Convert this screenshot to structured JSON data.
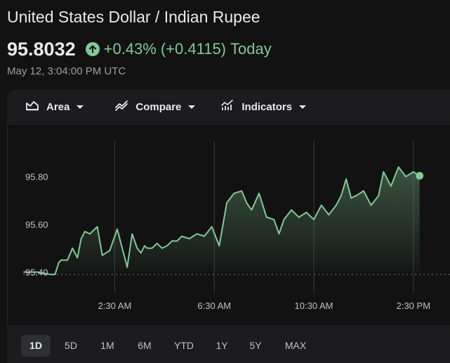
{
  "header": {
    "title": "United States Dollar / Indian Rupee",
    "price": "95.8032",
    "change_pct": "+0.43%",
    "change_abs": "(+0.4115)",
    "change_period": "Today",
    "timestamp": "May 12, 3:04:00 PM UTC"
  },
  "toolbar": {
    "area_label": "Area",
    "compare_label": "Compare",
    "indicators_label": "Indicators"
  },
  "ranges": [
    "1D",
    "5D",
    "1M",
    "6M",
    "YTD",
    "1Y",
    "5Y",
    "MAX"
  ],
  "active_range": "1D",
  "colors": {
    "positive": "#81c995",
    "background": "#121212",
    "panel": "#1c1c1e"
  },
  "chart_data": {
    "type": "area",
    "ylim": [
      95.35,
      95.9
    ],
    "previous_close": 95.39,
    "y_ticks": [
      "95.40",
      "95.60",
      "95.80"
    ],
    "x_ticks": [
      "2:30 AM",
      "6:30 AM",
      "10:30 AM",
      "2:30 PM"
    ],
    "x_tick_hours": [
      2.5,
      6.5,
      10.5,
      14.5
    ],
    "x_range_hours": [
      -1.8,
      16.0
    ],
    "series": [
      {
        "x": [
          -1.17,
          -0.6,
          -0.1,
          0.1,
          0.25,
          0.35,
          0.6,
          0.8,
          1.0,
          1.15,
          1.3,
          1.5,
          1.8,
          2.0,
          2.3,
          2.6,
          2.8,
          3.0,
          3.2,
          3.4,
          3.55,
          3.7,
          3.8,
          4.0,
          4.2,
          4.4,
          4.6,
          4.8,
          5.0,
          5.2,
          5.5,
          5.8,
          6.1,
          6.4,
          6.7,
          7.0,
          7.3,
          7.6,
          7.8,
          8.0,
          8.3,
          8.6,
          8.9,
          9.1,
          9.3,
          9.6,
          9.9,
          10.2,
          10.5,
          10.8,
          11.1,
          11.4,
          11.6,
          11.8,
          12.0,
          12.2,
          12.5,
          12.8,
          13.1,
          13.3,
          13.6,
          13.9,
          14.2,
          14.5,
          14.75
        ],
        "values": [
          95.4,
          95.4,
          95.39,
          95.39,
          95.44,
          95.45,
          95.45,
          95.5,
          95.46,
          95.54,
          95.57,
          95.56,
          95.59,
          95.47,
          95.49,
          95.58,
          95.5,
          95.42,
          95.56,
          95.5,
          95.48,
          95.51,
          95.5,
          95.5,
          95.52,
          95.5,
          95.51,
          95.53,
          95.53,
          95.55,
          95.54,
          95.56,
          95.55,
          95.59,
          95.51,
          95.69,
          95.73,
          95.74,
          95.69,
          95.66,
          95.73,
          95.63,
          95.62,
          95.56,
          95.62,
          95.66,
          95.63,
          95.65,
          95.62,
          95.68,
          95.64,
          95.68,
          95.72,
          95.79,
          95.71,
          95.72,
          95.74,
          95.68,
          95.72,
          95.82,
          95.76,
          95.84,
          95.8,
          95.82,
          95.8032
        ]
      }
    ]
  }
}
